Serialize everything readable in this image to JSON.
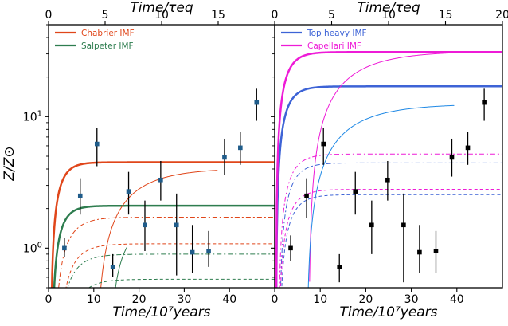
{
  "chart_data": {
    "type": "line",
    "ylabel": "Z/Z⊙",
    "ylim_log": [
      0.5,
      50
    ],
    "y_ticks": [
      {
        "label": "10",
        "sup": "0",
        "value": 1
      },
      {
        "label": "10",
        "sup": "1",
        "value": 10
      }
    ],
    "panels": [
      {
        "id": "left",
        "xlabel": "Time/10⁷years",
        "top_xlabel": "Time/τeq",
        "xlim": [
          0,
          50
        ],
        "x_ticks": [
          "0",
          "10",
          "20",
          "30",
          "40"
        ],
        "top_xlim": [
          0,
          20
        ],
        "top_x_ticks": [
          "0",
          "5",
          "10",
          "15"
        ],
        "series": [
          {
            "name": "Chabrier IMF",
            "color": "#e0461a",
            "asymptote": 4.5,
            "tau": 2.0,
            "t0": 0.5,
            "width": 2.5,
            "dash": "",
            "legend": true
          },
          {
            "name": "Salpeter IMF",
            "color": "#2e7d4f",
            "asymptote": 2.1,
            "tau": 2.0,
            "t0": 0.7,
            "width": 2.5,
            "dash": "",
            "legend": true
          },
          {
            "name": "",
            "color": "#e0461a",
            "asymptote": 4.05,
            "tau": 8,
            "t0": 10.5,
            "t_end": 37.5,
            "width": 1,
            "dash": ""
          },
          {
            "name": "",
            "color": "#2e7d4f",
            "asymptote": 1.6,
            "tau": 4,
            "t0": 13.3,
            "t_end": 17.5,
            "width": 1,
            "dash": ""
          },
          {
            "name": "",
            "color": "#e0461a",
            "asymptote": 1.72,
            "tau": 3,
            "t0": 1.2,
            "width": 1,
            "dash": "6,3,2,3"
          },
          {
            "name": "",
            "color": "#2e7d4f",
            "asymptote": 0.9,
            "tau": 3,
            "t0": 1.8,
            "width": 1,
            "dash": "6,3,2,3"
          },
          {
            "name": "",
            "color": "#e0461a",
            "asymptote": 1.08,
            "tau": 3,
            "t0": 2.0,
            "width": 1,
            "dash": "4,3"
          },
          {
            "name": "",
            "color": "#2e7d4f",
            "asymptote": 0.58,
            "tau": 3,
            "t0": 3.0,
            "width": 1,
            "dash": "4,3"
          }
        ],
        "points": {
          "color": "#1f5c8a",
          "data": [
            {
              "x": 3.5,
              "y": 1.0,
              "lo": 0.85,
              "hi": 1.2
            },
            {
              "x": 7.0,
              "y": 2.5,
              "lo": 1.8,
              "hi": 3.4
            },
            {
              "x": 10.7,
              "y": 6.2,
              "lo": 4.2,
              "hi": 8.2
            },
            {
              "x": 14.2,
              "y": 0.72,
              "lo": 0.6,
              "hi": 0.9
            },
            {
              "x": 17.7,
              "y": 2.7,
              "lo": 1.8,
              "hi": 3.8
            },
            {
              "x": 21.3,
              "y": 1.5,
              "lo": 0.95,
              "hi": 2.3
            },
            {
              "x": 24.8,
              "y": 3.3,
              "lo": 2.3,
              "hi": 4.6
            },
            {
              "x": 28.3,
              "y": 1.5,
              "lo": 0.62,
              "hi": 2.6
            },
            {
              "x": 31.8,
              "y": 0.93,
              "lo": 0.65,
              "hi": 1.5
            },
            {
              "x": 35.4,
              "y": 0.95,
              "lo": 0.72,
              "hi": 1.35
            },
            {
              "x": 38.9,
              "y": 4.9,
              "lo": 3.6,
              "hi": 6.8
            },
            {
              "x": 42.4,
              "y": 5.8,
              "lo": 4.3,
              "hi": 7.6
            },
            {
              "x": 46.0,
              "y": 12.8,
              "lo": 9.3,
              "hi": 16.3
            }
          ]
        }
      },
      {
        "id": "right",
        "xlabel": "Time/10⁷years",
        "top_xlabel": "Time/τeq",
        "xlim": [
          0,
          50
        ],
        "x_ticks": [
          "0",
          "10",
          "20",
          "30",
          "40"
        ],
        "top_xlim": [
          0,
          20
        ],
        "top_x_ticks": [
          "0",
          "5",
          "10",
          "15",
          "20"
        ],
        "series": [
          {
            "name": "Top heavy IMF",
            "color": "#3d63d6",
            "asymptote": 17.0,
            "tau": 2.2,
            "t0": 0.3,
            "width": 2.5,
            "dash": "",
            "legend": true
          },
          {
            "name": "Capellari IMF",
            "color": "#ee1bd7",
            "asymptote": 31.0,
            "tau": 2.2,
            "t0": 0.3,
            "width": 2.5,
            "dash": "",
            "legend": true
          },
          {
            "name": "",
            "color": "#ee1bd7",
            "asymptote": 31.5,
            "tau": 9,
            "t0": 7.5,
            "t_end": 43.7,
            "width": 1,
            "dash": ""
          },
          {
            "name": "",
            "color": "#1e88e5",
            "asymptote": 12.5,
            "tau": 9,
            "t0": 7.0,
            "t_end": 39.5,
            "width": 1,
            "dash": ""
          },
          {
            "name": "",
            "color": "#ee1bd7",
            "asymptote": 5.2,
            "tau": 2.5,
            "t0": 0.8,
            "width": 1,
            "dash": "6,3,2,3"
          },
          {
            "name": "",
            "color": "#3d63d6",
            "asymptote": 4.45,
            "tau": 2.5,
            "t0": 1.0,
            "width": 1,
            "dash": "6,3,2,3"
          },
          {
            "name": "",
            "color": "#ee1bd7",
            "asymptote": 2.8,
            "tau": 2.5,
            "t0": 0.8,
            "width": 1,
            "dash": "4,3"
          },
          {
            "name": "",
            "color": "#3d63d6",
            "asymptote": 2.55,
            "tau": 2.5,
            "t0": 1.0,
            "width": 1,
            "dash": "4,3"
          }
        ],
        "points": {
          "color": "#000000",
          "data": [
            {
              "x": 3.5,
              "y": 1.0,
              "lo": 0.8,
              "hi": 1.25
            },
            {
              "x": 7.0,
              "y": 2.5,
              "lo": 1.7,
              "hi": 3.4
            },
            {
              "x": 10.7,
              "y": 6.2,
              "lo": 4.3,
              "hi": 8.2
            },
            {
              "x": 14.2,
              "y": 0.72,
              "lo": 0.55,
              "hi": 0.9
            },
            {
              "x": 17.7,
              "y": 2.7,
              "lo": 1.8,
              "hi": 3.8
            },
            {
              "x": 21.3,
              "y": 1.5,
              "lo": 0.9,
              "hi": 2.3
            },
            {
              "x": 24.8,
              "y": 3.3,
              "lo": 2.3,
              "hi": 4.6
            },
            {
              "x": 28.3,
              "y": 1.5,
              "lo": 0.55,
              "hi": 2.6
            },
            {
              "x": 31.8,
              "y": 0.93,
              "lo": 0.65,
              "hi": 1.5
            },
            {
              "x": 35.4,
              "y": 0.95,
              "lo": 0.65,
              "hi": 1.35
            },
            {
              "x": 38.9,
              "y": 4.9,
              "lo": 3.5,
              "hi": 6.8
            },
            {
              "x": 42.4,
              "y": 5.8,
              "lo": 4.3,
              "hi": 7.6
            },
            {
              "x": 46.0,
              "y": 12.8,
              "lo": 9.3,
              "hi": 16.3
            }
          ]
        }
      }
    ]
  }
}
